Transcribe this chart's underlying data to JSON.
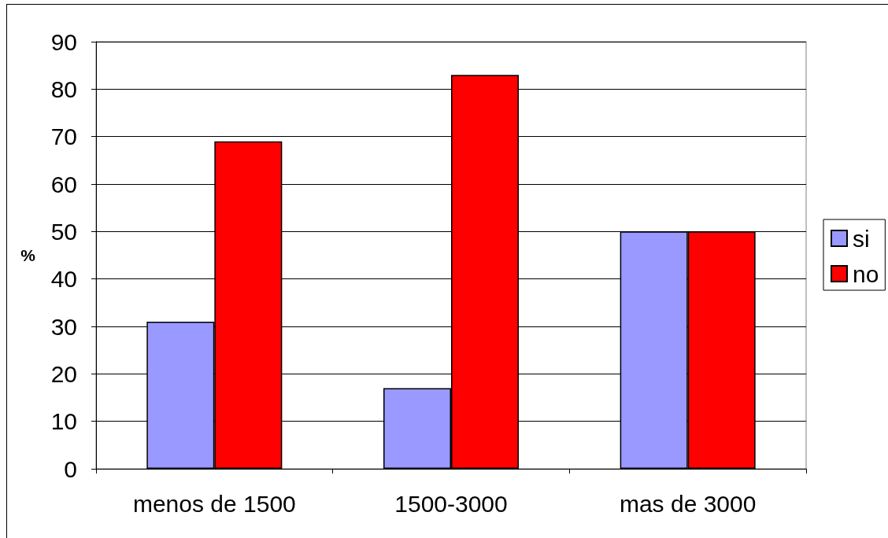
{
  "chart_data": {
    "type": "bar",
    "ylabel": "%",
    "categories": [
      "menos de 1500",
      "1500-3000",
      "mas de 3000"
    ],
    "series": [
      {
        "name": "si",
        "color": "#9999ff",
        "values": [
          31,
          17,
          50
        ]
      },
      {
        "name": "no",
        "color": "#ff0000",
        "values": [
          69,
          83,
          50
        ]
      }
    ],
    "ylim": [
      0,
      90
    ],
    "yticks": [
      0,
      10,
      20,
      30,
      40,
      50,
      60,
      70,
      80,
      90
    ],
    "grid": "y",
    "legend": "right"
  }
}
